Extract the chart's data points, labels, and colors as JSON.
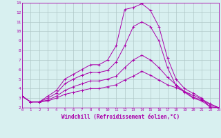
{
  "xlabel": "Windchill (Refroidissement éolien,°C)",
  "x": [
    0,
    1,
    2,
    3,
    4,
    5,
    6,
    7,
    8,
    9,
    10,
    11,
    12,
    13,
    14,
    15,
    16,
    17,
    18,
    19,
    20,
    21,
    22,
    23
  ],
  "line1": [
    3.2,
    2.6,
    2.6,
    3.2,
    3.8,
    5.0,
    5.5,
    6.0,
    6.5,
    6.5,
    7.0,
    8.5,
    12.3,
    12.5,
    12.9,
    12.2,
    10.5,
    7.2,
    5.0,
    4.0,
    3.5,
    3.0,
    2.0,
    2.0
  ],
  "line2": [
    3.2,
    2.6,
    2.6,
    3.0,
    3.5,
    4.5,
    5.0,
    5.4,
    5.7,
    5.7,
    5.9,
    6.8,
    8.5,
    10.5,
    11.0,
    10.5,
    9.0,
    6.2,
    4.3,
    3.6,
    3.0,
    2.7,
    2.1,
    2.0
  ],
  "line3": [
    3.2,
    2.6,
    2.6,
    2.8,
    3.2,
    3.8,
    4.2,
    4.5,
    4.8,
    4.8,
    5.0,
    5.3,
    6.2,
    7.0,
    7.5,
    7.0,
    6.2,
    5.2,
    4.4,
    3.7,
    3.1,
    2.8,
    2.3,
    2.0
  ],
  "line4": [
    3.2,
    2.6,
    2.6,
    2.7,
    3.0,
    3.4,
    3.6,
    3.8,
    4.0,
    4.0,
    4.2,
    4.4,
    4.9,
    5.3,
    5.8,
    5.4,
    4.9,
    4.4,
    4.1,
    3.7,
    3.3,
    2.9,
    2.4,
    2.0
  ],
  "line_color": "#aa00aa",
  "bg_color": "#d8f0f0",
  "grid_color": "#b0c8c8",
  "ylim": [
    2,
    13
  ],
  "xlim": [
    0,
    23
  ]
}
